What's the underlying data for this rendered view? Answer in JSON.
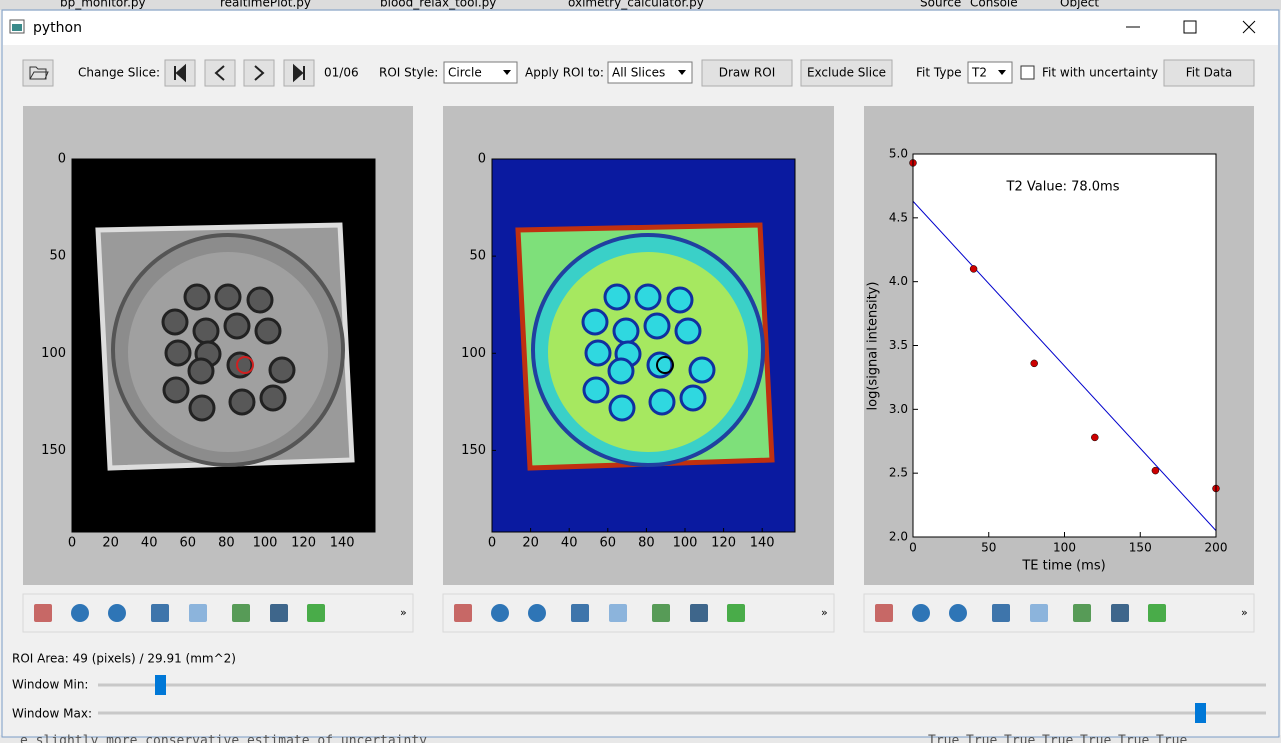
{
  "tabs": [
    "bp_monitor.py",
    "realtimePlot.py",
    "blood_relax_tool.py",
    "oximetry_calculator.py"
  ],
  "side_tabs": [
    "Source",
    "Console",
    "Object"
  ],
  "window": {
    "title": "python"
  },
  "toolbar": {
    "change_slice": "Change Slice:",
    "slice": "01/06",
    "roi_style_label": "ROI Style:",
    "roi_style": "Circle",
    "apply_label": "Apply ROI to:",
    "apply": "All Slices",
    "draw_roi": "Draw ROI",
    "exclude": "Exclude Slice",
    "fit_type_label": "Fit Type",
    "fit_type": "T2",
    "uncertainty": "Fit with uncertainty",
    "fit_data": "Fit Data"
  },
  "images": {
    "xlim": [
      0,
      157
    ],
    "ylim": [
      0,
      192
    ],
    "xticks": [
      0,
      20,
      40,
      60,
      80,
      100,
      120,
      140
    ],
    "yticks": [
      0,
      50,
      100,
      150
    ]
  },
  "chart_data": {
    "type": "scatter",
    "annotation": "T2 Value: 78.0ms",
    "x_label": "TE time (ms)",
    "y_label": "log(signal intensity)",
    "x": [
      0,
      40,
      80,
      120,
      160,
      200
    ],
    "values": [
      4.93,
      4.1,
      3.36,
      2.78,
      2.52,
      2.38
    ],
    "color": "#cc0000",
    "fit": {
      "x": [
        0,
        200
      ],
      "values": [
        4.63,
        2.05
      ],
      "color": "#0000cc"
    },
    "xlim": [
      0,
      200
    ],
    "ylim": [
      2,
      5
    ],
    "xticks": [
      0,
      50,
      100,
      150,
      200
    ],
    "yticks": [
      {
        "value": 2,
        "label": "2.0"
      },
      {
        "value": 2.5,
        "label": "2.5"
      },
      {
        "value": 3,
        "label": "3.0"
      },
      {
        "value": 3.5,
        "label": "3.5"
      },
      {
        "value": 4,
        "label": "4.0"
      },
      {
        "value": 4.5,
        "label": "4.5"
      },
      {
        "value": 5,
        "label": "5.0"
      }
    ]
  },
  "status": {
    "roi_area": "ROI Area: 49 (pixels) / 29.91 (mm^2)",
    "window_min": "Window Min:",
    "window_max": "Window Max:"
  },
  "background": {
    "text": "e slightly more conservative estimate of uncertainty",
    "cells": [
      "True",
      "True",
      "True",
      "True",
      "True",
      "True",
      "True"
    ]
  }
}
